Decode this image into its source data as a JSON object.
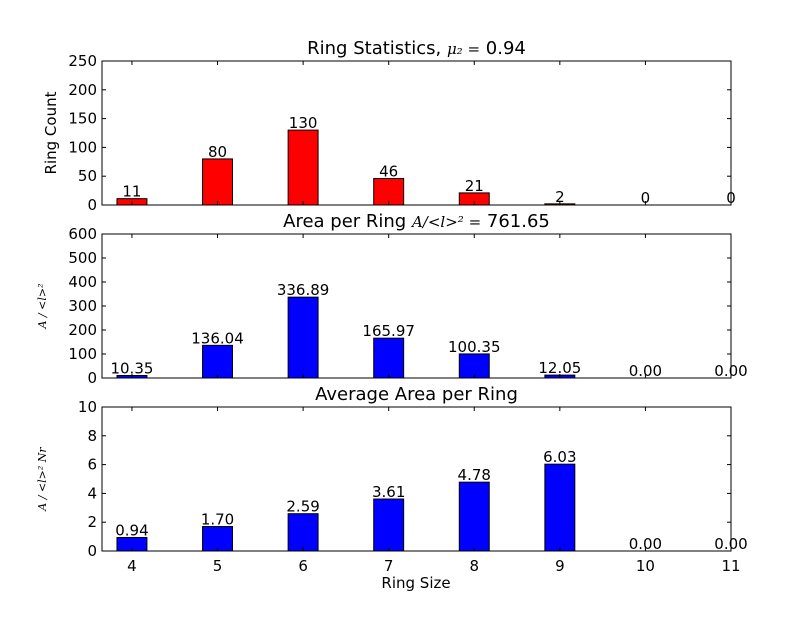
{
  "figure": {
    "xlabel": "Ring Size"
  },
  "chart_data": [
    {
      "type": "bar",
      "title": "Ring Statistics, ",
      "title_math": "μ₂ =",
      "title_value": " 0.94",
      "ylabel": "Ring Count",
      "ylabel_math": false,
      "categories": [
        "4",
        "5",
        "6",
        "7",
        "8",
        "9",
        "10",
        "11"
      ],
      "values": [
        11,
        80,
        130,
        46,
        21,
        2,
        0,
        0
      ],
      "labels": [
        "11",
        "80",
        "130",
        "46",
        "21",
        "2",
        "0",
        "0"
      ],
      "ylim": [
        0,
        250
      ],
      "yticks": [
        "0",
        "50",
        "100",
        "150",
        "200",
        "250"
      ],
      "color": "#ff0000"
    },
    {
      "type": "bar",
      "title": "Area per Ring ",
      "title_math": "A/<l>² =",
      "title_value": " 761.65",
      "ylabel": "A / <l>²",
      "ylabel_math": true,
      "categories": [
        "4",
        "5",
        "6",
        "7",
        "8",
        "9",
        "10",
        "11"
      ],
      "values": [
        10.35,
        136.04,
        336.89,
        165.97,
        100.35,
        12.05,
        0.0,
        0.0
      ],
      "labels": [
        "10.35",
        "136.04",
        "336.89",
        "165.97",
        "100.35",
        "12.05",
        "0.00",
        "0.00"
      ],
      "ylim": [
        0,
        600
      ],
      "yticks": [
        "0",
        "100",
        "200",
        "300",
        "400",
        "500",
        "600"
      ],
      "color": "#0000ff"
    },
    {
      "type": "bar",
      "title": "Average Area per Ring",
      "title_math": "",
      "title_value": "",
      "ylabel": "A / <l>² Nr",
      "ylabel_math": true,
      "categories": [
        "4",
        "5",
        "6",
        "7",
        "8",
        "9",
        "10",
        "11"
      ],
      "values": [
        0.94,
        1.7,
        2.59,
        3.61,
        4.78,
        6.03,
        0.0,
        0.0
      ],
      "labels": [
        "0.94",
        "1.70",
        "2.59",
        "3.61",
        "4.78",
        "6.03",
        "0.00",
        "0.00"
      ],
      "ylim": [
        0,
        10
      ],
      "yticks": [
        "0",
        "2",
        "4",
        "6",
        "8",
        "10"
      ],
      "color": "#0000ff"
    }
  ]
}
